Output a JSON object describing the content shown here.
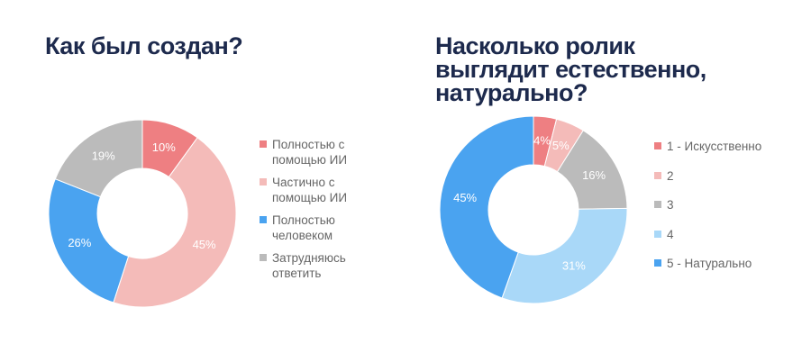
{
  "chart_data": [
    {
      "type": "pie",
      "title": "Как был создан?",
      "categories": [
        "Полностью с помощью ИИ",
        "Частично с помощью ИИ",
        "Полностью человеком",
        "Затрудняюсь ответить"
      ],
      "values": [
        10,
        45,
        26,
        19
      ],
      "labels": [
        "10%",
        "45%",
        "26%",
        "19%"
      ],
      "colors": [
        "#ee7f82",
        "#f4bbb9",
        "#4aa3f0",
        "#bbbbbb"
      ],
      "legend_position": "right",
      "donut": true
    },
    {
      "type": "pie",
      "title": "Насколько ролик выглядит естественно, натурально?",
      "title_lines": [
        "Насколько ролик",
        "выглядит естественно,",
        "натурально?"
      ],
      "categories": [
        "1 - Искусственно",
        "2",
        "3",
        "4",
        "5 - Натурально"
      ],
      "values": [
        4,
        5,
        16,
        31,
        45
      ],
      "labels": [
        "4%",
        "5%",
        "16%",
        "31%",
        "45%"
      ],
      "colors": [
        "#ee7f82",
        "#f4bbb9",
        "#bbbbbb",
        "#a9d8f8",
        "#4aa3f0"
      ],
      "legend_position": "right",
      "donut": true
    }
  ]
}
